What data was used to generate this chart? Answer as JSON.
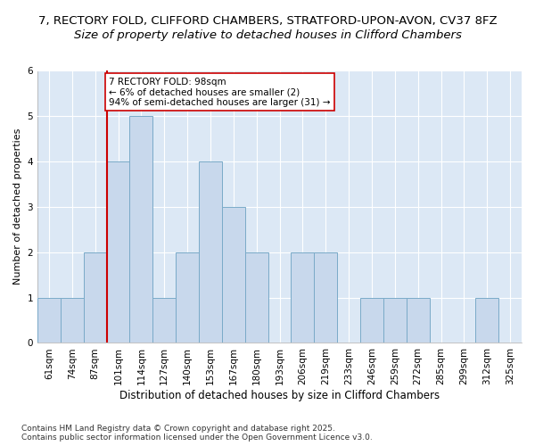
{
  "title1": "7, RECTORY FOLD, CLIFFORD CHAMBERS, STRATFORD-UPON-AVON, CV37 8FZ",
  "title2": "Size of property relative to detached houses in Clifford Chambers",
  "xlabel": "Distribution of detached houses by size in Clifford Chambers",
  "ylabel": "Number of detached properties",
  "bins": [
    "61sqm",
    "74sqm",
    "87sqm",
    "101sqm",
    "114sqm",
    "127sqm",
    "140sqm",
    "153sqm",
    "167sqm",
    "180sqm",
    "193sqm",
    "206sqm",
    "219sqm",
    "233sqm",
    "246sqm",
    "259sqm",
    "272sqm",
    "285sqm",
    "299sqm",
    "312sqm",
    "325sqm"
  ],
  "values": [
    1,
    1,
    2,
    4,
    5,
    1,
    2,
    4,
    3,
    2,
    0,
    2,
    2,
    0,
    1,
    1,
    1,
    0,
    0,
    1,
    0
  ],
  "bar_color": "#c8d8ec",
  "bar_edge_color": "#7aaac8",
  "vline_x_index": 3,
  "vline_color": "#cc0000",
  "annotation_text": "7 RECTORY FOLD: 98sqm\n← 6% of detached houses are smaller (2)\n94% of semi-detached houses are larger (31) →",
  "annotation_box_color": "#ffffff",
  "annotation_box_edge": "#cc0000",
  "ylim": [
    0,
    6
  ],
  "yticks": [
    0,
    1,
    2,
    3,
    4,
    5,
    6
  ],
  "footer_text": "Contains HM Land Registry data © Crown copyright and database right 2025.\nContains public sector information licensed under the Open Government Licence v3.0.",
  "bg_color": "#ffffff",
  "plot_bg_color": "#dce8f5",
  "grid_color": "#ffffff",
  "title1_fontsize": 9.5,
  "title2_fontsize": 9.5,
  "xlabel_fontsize": 8.5,
  "ylabel_fontsize": 8,
  "tick_fontsize": 7.5,
  "footer_fontsize": 6.5
}
